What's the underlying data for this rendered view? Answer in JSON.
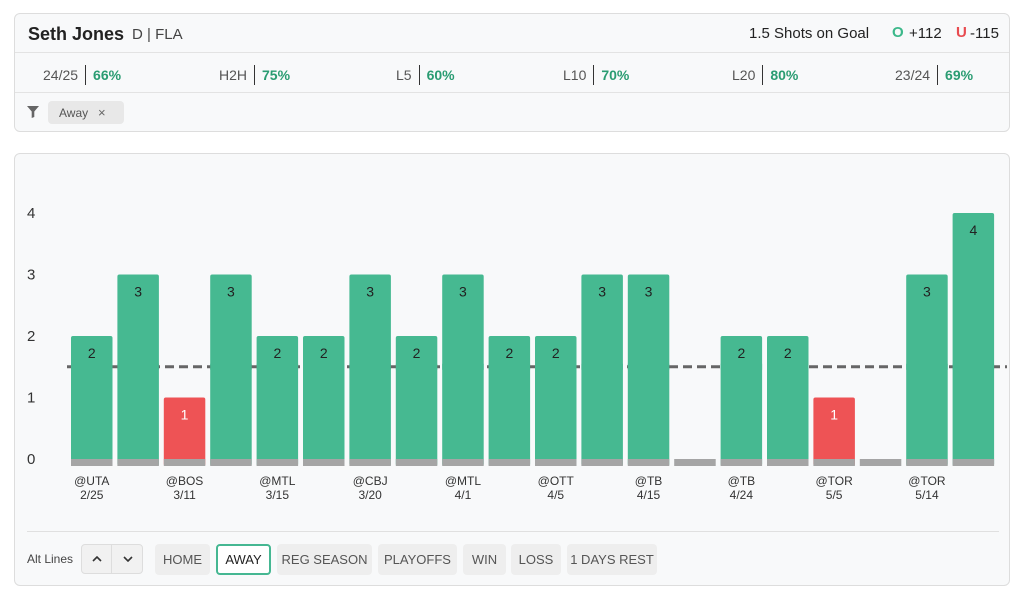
{
  "header": {
    "player_name": "Seth Jones",
    "player_position": "D | FLA",
    "prop_line": "1.5 Shots on Goal",
    "over_mark": "O",
    "over_odds": "+112",
    "under_mark": "U",
    "under_odds": "-115"
  },
  "stats": [
    {
      "label": "24/25",
      "value": "66%"
    },
    {
      "label": "H2H",
      "value": "75%"
    },
    {
      "label": "L5",
      "value": "60%"
    },
    {
      "label": "L10",
      "value": "70%"
    },
    {
      "label": "L20",
      "value": "80%"
    },
    {
      "label": "23/24",
      "value": "69%"
    }
  ],
  "filters": {
    "icon": "funnel-icon",
    "chip_label": "Away",
    "chip_close": "×"
  },
  "controls": {
    "alt_lines_label": "Alt Lines",
    "up_glyph": "⌃",
    "down_glyph": "⌄",
    "buttons": [
      "HOME",
      "AWAY",
      "REG SEASON",
      "PLAYOFFS",
      "WIN",
      "LOSS",
      "1 DAYS REST"
    ],
    "active_button": "AWAY"
  },
  "colors": {
    "over": "#46b991",
    "under": "#ee5355",
    "base": "#a5a5a5",
    "line": "#666666"
  },
  "chart_data": {
    "type": "bar",
    "line_value": 1.5,
    "ylim": [
      0,
      4
    ],
    "yticks": [
      0,
      1,
      2,
      3,
      4
    ],
    "values": [
      2,
      3,
      1,
      3,
      2,
      2,
      3,
      2,
      3,
      2,
      2,
      3,
      3,
      0,
      2,
      2,
      1,
      0,
      3,
      4
    ],
    "x_labels": [
      {
        "index": 0,
        "opp": "@UTA",
        "date": "2/25"
      },
      {
        "index": 2,
        "opp": "@BOS",
        "date": "3/11"
      },
      {
        "index": 4,
        "opp": "@MTL",
        "date": "3/15"
      },
      {
        "index": 6,
        "opp": "@CBJ",
        "date": "3/20"
      },
      {
        "index": 8,
        "opp": "@MTL",
        "date": "4/1"
      },
      {
        "index": 10,
        "opp": "@OTT",
        "date": "4/5"
      },
      {
        "index": 12,
        "opp": "@TB",
        "date": "4/15"
      },
      {
        "index": 14,
        "opp": "@TB",
        "date": "4/24"
      },
      {
        "index": 16,
        "opp": "@TOR",
        "date": "5/5"
      },
      {
        "index": 18,
        "opp": "@TOR",
        "date": "5/14"
      }
    ]
  }
}
